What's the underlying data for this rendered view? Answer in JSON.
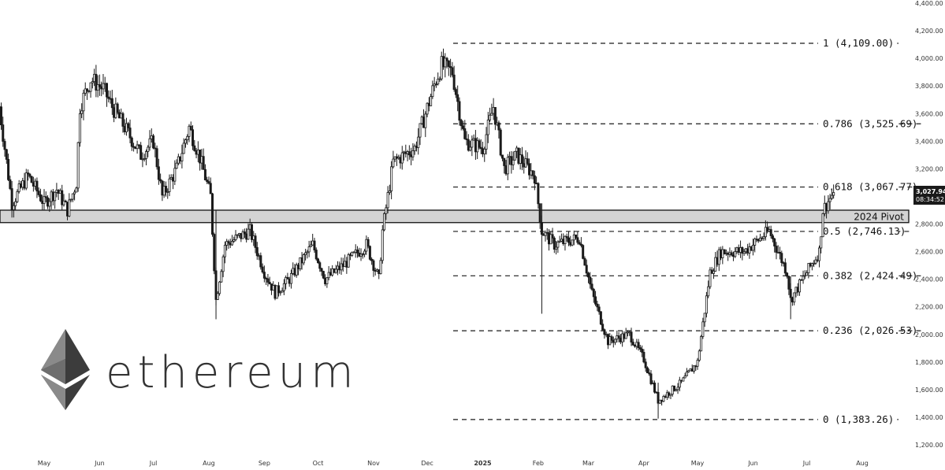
{
  "chart_data": {
    "type": "candlestick",
    "title": "",
    "xlabel": "",
    "ylabel": "",
    "y_axis_side": "right",
    "ylim": [
      1100,
      4400
    ],
    "y_ticks": [
      "1,200.00",
      "1,400.00",
      "1,600.00",
      "1,800.00",
      "2,000.00",
      "2,200.00",
      "2,400.00",
      "2,600.00",
      "2,800.00",
      "3,000.00",
      "3,200.00",
      "3,400.00",
      "3,600.00",
      "3,800.00",
      "4,000.00",
      "4,200.00",
      "4,400.00"
    ],
    "x_ticks": [
      {
        "label": "May",
        "date": "2024-05-01"
      },
      {
        "label": "Jun",
        "date": "2024-06-01"
      },
      {
        "label": "Jul",
        "date": "2024-07-01"
      },
      {
        "label": "Aug",
        "date": "2024-08-01"
      },
      {
        "label": "Sep",
        "date": "2024-09-01"
      },
      {
        "label": "Oct",
        "date": "2024-10-01"
      },
      {
        "label": "Nov",
        "date": "2024-11-01"
      },
      {
        "label": "Dec",
        "date": "2024-12-01"
      },
      {
        "label": "2025",
        "date": "2025-01-01",
        "bold": true
      },
      {
        "label": "Feb",
        "date": "2025-02-01"
      },
      {
        "label": "Mar",
        "date": "2025-03-01"
      },
      {
        "label": "Apr",
        "date": "2025-04-01"
      },
      {
        "label": "May",
        "date": "2025-05-01"
      },
      {
        "label": "Jun",
        "date": "2025-06-01"
      },
      {
        "label": "Jul",
        "date": "2025-07-01"
      },
      {
        "label": "Aug",
        "date": "2025-08-01"
      }
    ],
    "x_range": [
      "2024-04-06",
      "2025-08-24"
    ],
    "price_path": [
      [
        "2024-04-06",
        3650
      ],
      [
        "2024-04-13",
        2950
      ],
      [
        "2024-04-22",
        3150
      ],
      [
        "2024-05-01",
        2950
      ],
      [
        "2024-05-08",
        3050
      ],
      [
        "2024-05-14",
        2900
      ],
      [
        "2024-05-19",
        3100
      ],
      [
        "2024-05-21",
        3650
      ],
      [
        "2024-05-27",
        3850
      ],
      [
        "2024-06-03",
        3780
      ],
      [
        "2024-06-08",
        3650
      ],
      [
        "2024-06-15",
        3500
      ],
      [
        "2024-06-24",
        3300
      ],
      [
        "2024-07-01",
        3400
      ],
      [
        "2024-07-06",
        3000
      ],
      [
        "2024-07-14",
        3200
      ],
      [
        "2024-07-21",
        3500
      ],
      [
        "2024-07-27",
        3280
      ],
      [
        "2024-08-02",
        3000
      ],
      [
        "2024-08-05",
        2250
      ],
      [
        "2024-08-10",
        2650
      ],
      [
        "2024-08-24",
        2750
      ],
      [
        "2024-09-01",
        2450
      ],
      [
        "2024-09-07",
        2300
      ],
      [
        "2024-09-15",
        2400
      ],
      [
        "2024-09-28",
        2650
      ],
      [
        "2024-10-05",
        2400
      ],
      [
        "2024-10-15",
        2500
      ],
      [
        "2024-10-28",
        2650
      ],
      [
        "2024-11-04",
        2400
      ],
      [
        "2024-11-06",
        2750
      ],
      [
        "2024-11-12",
        3250
      ],
      [
        "2024-11-24",
        3350
      ],
      [
        "2024-12-06",
        3850
      ],
      [
        "2024-12-09",
        3950
      ],
      [
        "2024-12-15",
        3900
      ],
      [
        "2024-12-22",
        3400
      ],
      [
        "2025-01-01",
        3350
      ],
      [
        "2025-01-07",
        3650
      ],
      [
        "2025-01-13",
        3200
      ],
      [
        "2025-01-20",
        3300
      ],
      [
        "2025-01-30",
        3150
      ],
      [
        "2025-02-03",
        2750
      ],
      [
        "2025-02-10",
        2650
      ],
      [
        "2025-02-24",
        2700
      ],
      [
        "2025-03-03",
        2300
      ],
      [
        "2025-03-12",
        1950
      ],
      [
        "2025-03-24",
        2000
      ],
      [
        "2025-04-01",
        1820
      ],
      [
        "2025-04-09",
        1520
      ],
      [
        "2025-04-22",
        1650
      ],
      [
        "2025-05-01",
        1800
      ],
      [
        "2025-05-08",
        2450
      ],
      [
        "2025-05-14",
        2600
      ],
      [
        "2025-05-27",
        2600
      ],
      [
        "2025-06-10",
        2750
      ],
      [
        "2025-06-20",
        2450
      ],
      [
        "2025-06-22",
        2250
      ],
      [
        "2025-07-01",
        2450
      ],
      [
        "2025-07-08",
        2600
      ],
      [
        "2025-07-10",
        2900
      ],
      [
        "2025-07-16",
        3028
      ]
    ],
    "last_price": "3,027.94",
    "countdown": "08:34:52",
    "fib_levels": [
      {
        "ratio": "1",
        "value": 4109.0,
        "label": "1 (4,109.00)"
      },
      {
        "ratio": "0.786",
        "value": 3525.69,
        "label": "0.786 (3,525.69)"
      },
      {
        "ratio": "0.618",
        "value": 3067.77,
        "label": "0.618 (3,067.77)"
      },
      {
        "ratio": "0.5",
        "value": 2746.13,
        "label": "0.5 (2,746.13)"
      },
      {
        "ratio": "0.382",
        "value": 2424.49,
        "label": "0.382 (2,424.49)"
      },
      {
        "ratio": "0.236",
        "value": 2026.53,
        "label": "0.236 (2,026.53)"
      },
      {
        "ratio": "0",
        "value": 1383.26,
        "label": "0 (1,383.26)"
      }
    ],
    "pivot_zone": {
      "label": "2024 Pivot",
      "low": 2810,
      "high": 2900
    },
    "colors": {
      "candle": "#1a1a1a",
      "pivot_fill": "#d3d3d3",
      "fib_line": "#1a1a1a",
      "price_tag_bg": "#1a1a1a"
    }
  },
  "brand": {
    "wordmark": "ethereum",
    "logo_icon": "ethereum-diamond-icon"
  }
}
